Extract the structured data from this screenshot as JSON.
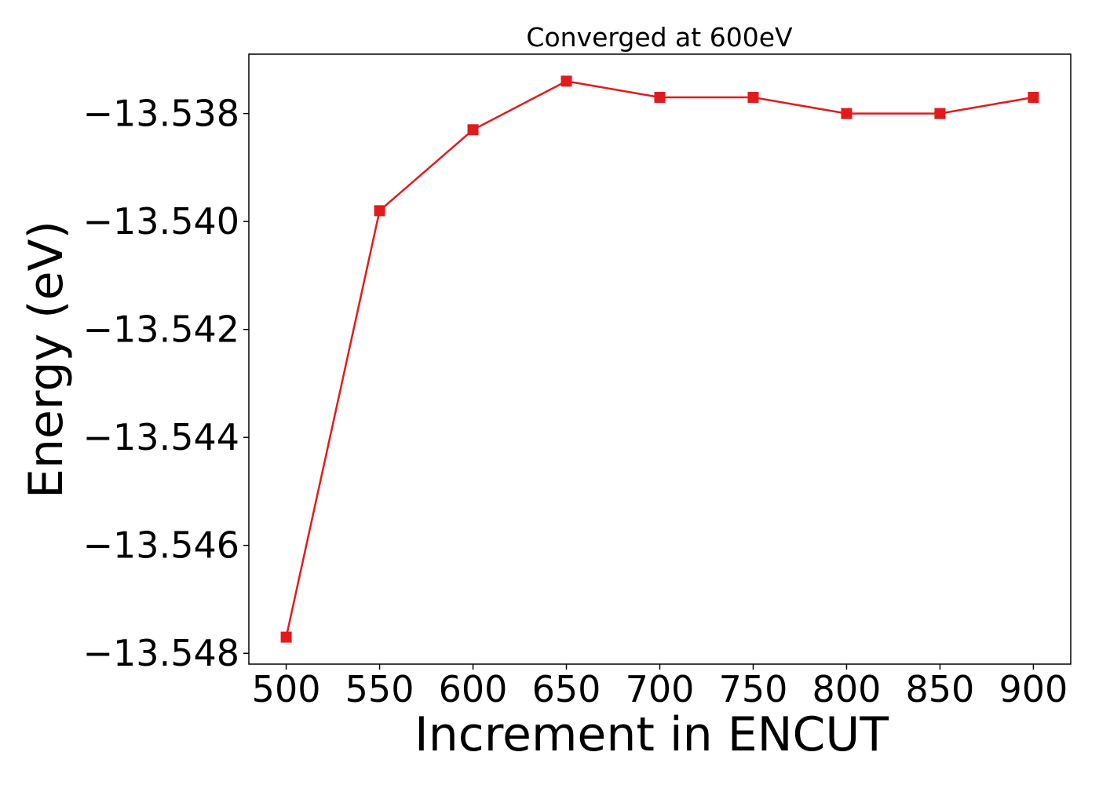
{
  "chart_data": {
    "type": "line",
    "title": "Converged at 600eV",
    "xlabel": "Increment in ENCUT",
    "ylabel": "Energy (eV)",
    "x": [
      500,
      550,
      600,
      650,
      700,
      750,
      800,
      850,
      900
    ],
    "series": [
      {
        "values": [
          -13.5477,
          -13.5398,
          -13.5383,
          -13.5374,
          -13.5377,
          -13.5377,
          -13.538,
          -13.538,
          -13.5377
        ],
        "color": "#e31a1c",
        "marker": "square"
      }
    ],
    "xticks": [
      500,
      550,
      600,
      650,
      700,
      750,
      800,
      850,
      900
    ],
    "xtick_labels": [
      "500",
      "550",
      "600",
      "650",
      "700",
      "750",
      "800",
      "850",
      "900"
    ],
    "yticks": [
      -13.548,
      -13.546,
      -13.544,
      -13.542,
      -13.54,
      -13.538
    ],
    "ytick_labels": [
      "−13.548",
      "−13.546",
      "−13.544",
      "−13.542",
      "−13.540",
      "−13.538"
    ],
    "xlim": [
      480,
      920
    ],
    "ylim": [
      -13.5482,
      -13.5369
    ],
    "grid": false,
    "legend": "none"
  }
}
